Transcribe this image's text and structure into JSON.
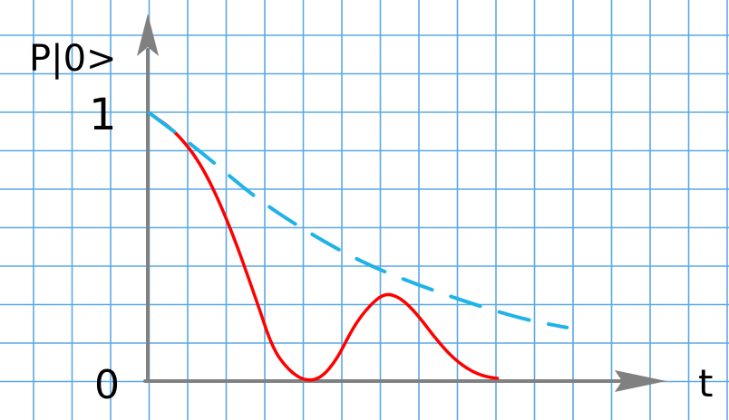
{
  "chart_data": {
    "type": "line",
    "title": "",
    "ylabel": "P|0>",
    "xlabel": "t",
    "y_ticks": [
      {
        "value": 1,
        "label": "1"
      },
      {
        "value": 0,
        "label": "0"
      }
    ],
    "ylim": [
      0,
      1
    ],
    "grid": true,
    "legend": "none",
    "colors": {
      "grid": "#5aa9e6",
      "axis": "#808080",
      "oscillation": "#ff0000",
      "envelope": "#1fb3e8"
    },
    "series": [
      {
        "style": "solid",
        "points": [
          [
            0.0,
            1.0
          ],
          [
            0.05,
            0.93
          ],
          [
            0.1,
            0.8
          ],
          [
            0.15,
            0.58
          ],
          [
            0.2,
            0.3
          ],
          [
            0.23,
            0.12
          ],
          [
            0.26,
            0.04
          ],
          [
            0.29,
            0.0
          ],
          [
            0.32,
            0.01
          ],
          [
            0.35,
            0.08
          ],
          [
            0.38,
            0.2
          ],
          [
            0.41,
            0.28
          ],
          [
            0.44,
            0.33
          ],
          [
            0.47,
            0.31
          ],
          [
            0.5,
            0.25
          ],
          [
            0.53,
            0.17
          ],
          [
            0.56,
            0.1
          ],
          [
            0.59,
            0.05
          ],
          [
            0.62,
            0.02
          ],
          [
            0.65,
            0.01
          ]
        ]
      },
      {
        "style": "dashed",
        "points": [
          [
            0.0,
            1.0
          ],
          [
            0.1,
            0.85
          ],
          [
            0.2,
            0.68
          ],
          [
            0.3,
            0.55
          ],
          [
            0.4,
            0.44
          ],
          [
            0.5,
            0.36
          ],
          [
            0.6,
            0.29
          ],
          [
            0.7,
            0.23
          ],
          [
            0.78,
            0.2
          ]
        ]
      }
    ]
  }
}
